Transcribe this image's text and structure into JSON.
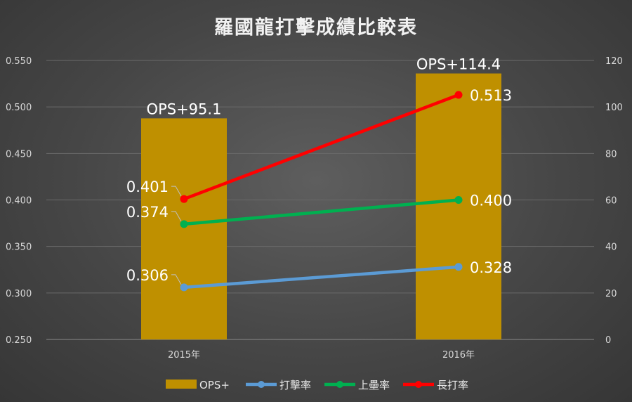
{
  "chart_data": {
    "type": "bar+line",
    "title": "羅國龍打擊成績比較表",
    "categories": [
      "2015年",
      "2016年"
    ],
    "y_left": {
      "range": [
        0.25,
        0.55
      ],
      "ticks": [
        "0.250",
        "0.300",
        "0.350",
        "0.400",
        "0.450",
        "0.500",
        "0.550"
      ]
    },
    "y_right": {
      "range": [
        0,
        120
      ],
      "ticks": [
        "0",
        "20",
        "40",
        "60",
        "80",
        "100",
        "120"
      ]
    },
    "bar_series": {
      "name": "OPS+",
      "axis": "right",
      "color": "#bf9000",
      "values": [
        95.1,
        114.4
      ],
      "labels": [
        "OPS+95.1",
        "OPS+114.4"
      ]
    },
    "line_series": [
      {
        "name": "打擊率",
        "axis": "left",
        "color": "#5b9bd5",
        "values": [
          0.306,
          0.328
        ],
        "labels": [
          "0.306",
          "0.328"
        ]
      },
      {
        "name": "上壘率",
        "axis": "left",
        "color": "#00b050",
        "values": [
          0.374,
          0.4
        ],
        "labels": [
          "0.374",
          "0.400"
        ]
      },
      {
        "name": "長打率",
        "axis": "left",
        "color": "#ff0000",
        "values": [
          0.401,
          0.513
        ],
        "labels": [
          "0.401",
          "0.513"
        ]
      }
    ],
    "grid": true,
    "legend_position": "bottom"
  }
}
